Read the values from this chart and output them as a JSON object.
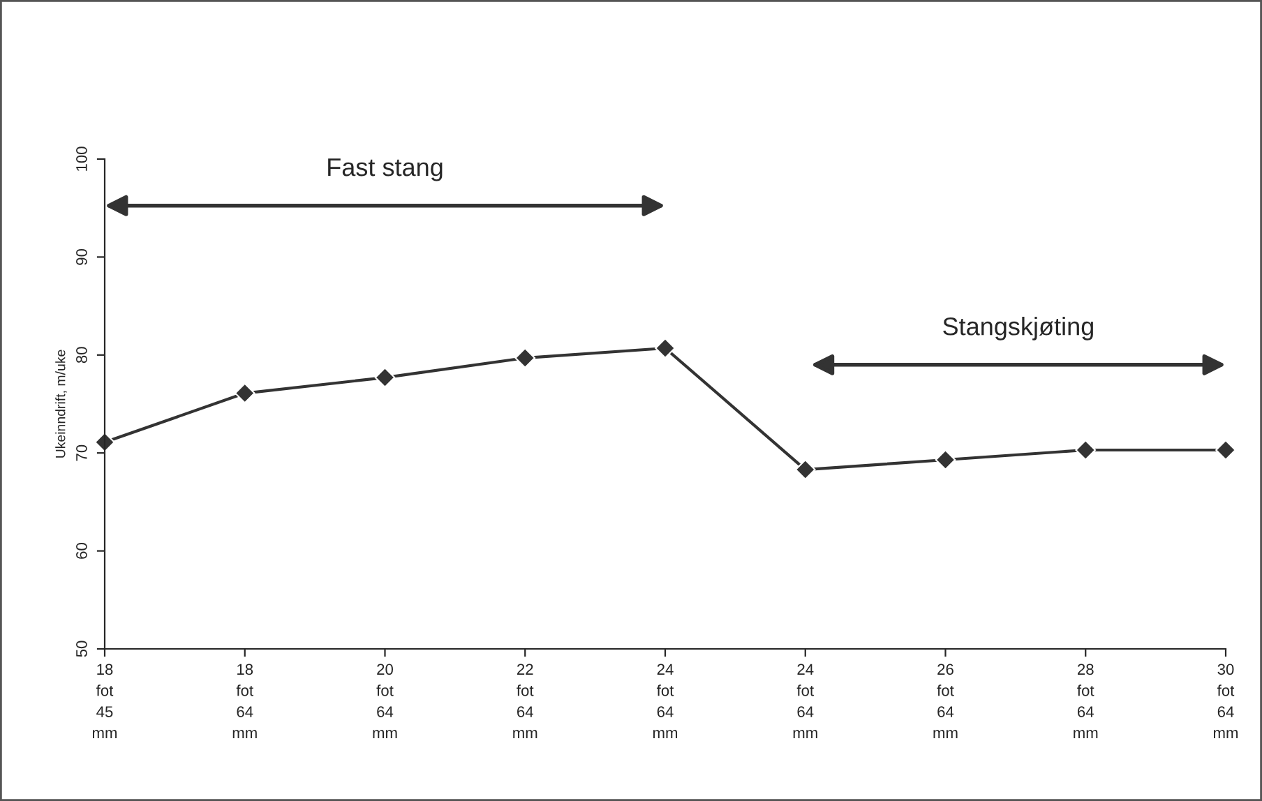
{
  "chart_data": {
    "type": "line",
    "ylabel": "Ukeinndrift, m/uke",
    "categories": [
      "18\nfot\n45\nmm",
      "18\nfot\n64\nmm",
      "20\nfot\n64\nmm",
      "22\nfot\n64\nmm",
      "24\nfot\n64\nmm",
      "24\nfot\n64\nmm",
      "26\nfot\n64\nmm",
      "28\nfot\n64\nmm",
      "30\nfot\n64\nmm"
    ],
    "series": [
      {
        "color": "#333333",
        "values": [
          71.1,
          76.1,
          77.7,
          79.7,
          80.7,
          68.3,
          69.3,
          70.3,
          70.3
        ]
      }
    ],
    "ylim": [
      50,
      100
    ],
    "yticks": [
      50,
      60,
      70,
      80,
      90,
      100
    ],
    "grid": false,
    "legend": false,
    "marker": "diamond",
    "line_style": "solid",
    "annotations": [
      "Fast stang",
      "Stangskjøting"
    ]
  }
}
